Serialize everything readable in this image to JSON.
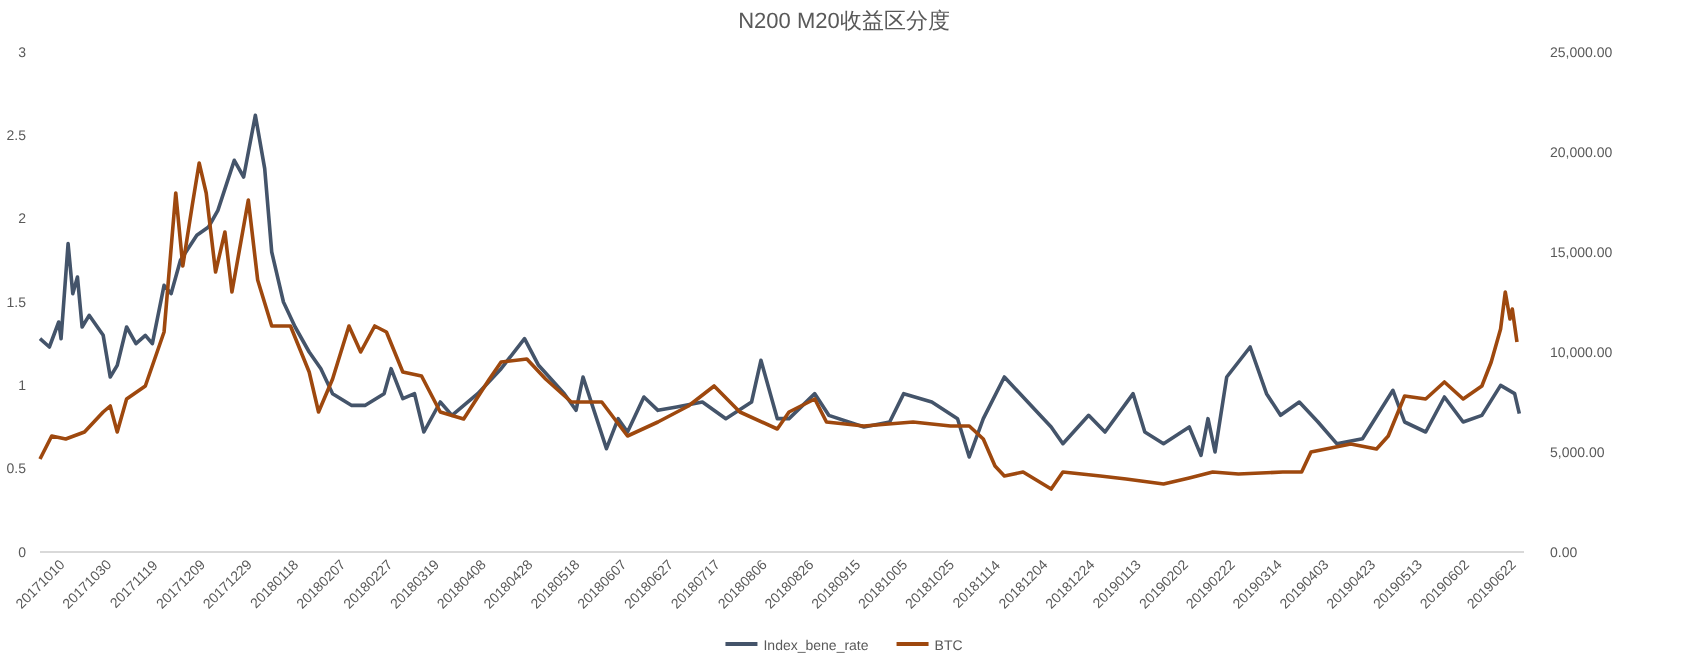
{
  "chart_data": {
    "type": "line",
    "title": "N200 M20收益区分度",
    "xlim": [
      "2017-10-10",
      "2019-07-06"
    ],
    "xticks": [
      {
        "value": "2017-10-10",
        "label": "20171010"
      },
      {
        "value": "2017-10-30",
        "label": "20171030"
      },
      {
        "value": "2017-11-19",
        "label": "20171119"
      },
      {
        "value": "2017-12-09",
        "label": "20171209"
      },
      {
        "value": "2017-12-29",
        "label": "20171229"
      },
      {
        "value": "2018-01-18",
        "label": "20180118"
      },
      {
        "value": "2018-02-07",
        "label": "20180207"
      },
      {
        "value": "2018-02-27",
        "label": "20180227"
      },
      {
        "value": "2018-03-19",
        "label": "20180319"
      },
      {
        "value": "2018-04-08",
        "label": "20180408"
      },
      {
        "value": "2018-04-28",
        "label": "20180428"
      },
      {
        "value": "2018-05-18",
        "label": "20180518"
      },
      {
        "value": "2018-06-07",
        "label": "20180607"
      },
      {
        "value": "2018-06-27",
        "label": "20180627"
      },
      {
        "value": "2018-07-17",
        "label": "20180717"
      },
      {
        "value": "2018-08-06",
        "label": "20180806"
      },
      {
        "value": "2018-08-26",
        "label": "20180826"
      },
      {
        "value": "2018-09-15",
        "label": "20180915"
      },
      {
        "value": "2018-10-05",
        "label": "20181005"
      },
      {
        "value": "2018-10-25",
        "label": "20181025"
      },
      {
        "value": "2018-11-14",
        "label": "20181114"
      },
      {
        "value": "2018-12-04",
        "label": "20181204"
      },
      {
        "value": "2018-12-24",
        "label": "20181224"
      },
      {
        "value": "2019-01-13",
        "label": "20190113"
      },
      {
        "value": "2019-02-02",
        "label": "20190202"
      },
      {
        "value": "2019-02-22",
        "label": "20190222"
      },
      {
        "value": "2019-03-14",
        "label": "20190314"
      },
      {
        "value": "2019-04-03",
        "label": "20190403"
      },
      {
        "value": "2019-04-23",
        "label": "20190423"
      },
      {
        "value": "2019-05-13",
        "label": "20190513"
      },
      {
        "value": "2019-06-02",
        "label": "20190602"
      },
      {
        "value": "2019-06-22",
        "label": "20190622"
      }
    ],
    "ylim": [
      0,
      3
    ],
    "yticks": [
      0,
      0.5,
      1,
      1.5,
      2,
      2.5,
      3
    ],
    "y2lim": [
      0,
      25000
    ],
    "y2ticks": [
      {
        "value": 0,
        "label": "0.00"
      },
      {
        "value": 5000,
        "label": "5,000.00"
      },
      {
        "value": 10000,
        "label": "10,000.00"
      },
      {
        "value": 15000,
        "label": "15,000.00"
      },
      {
        "value": 20000,
        "label": "20,000.00"
      },
      {
        "value": 25000,
        "label": "25,000.00"
      }
    ],
    "legend": "bottom",
    "grid": false,
    "marker": "none",
    "line_style": "solid",
    "series": [
      {
        "name": "Index_bene_rate",
        "color": "#44546a",
        "x": [
          "2017-10-10",
          "2017-10-14",
          "2017-10-18",
          "2017-10-19",
          "2017-10-22",
          "2017-10-24",
          "2017-10-26",
          "2017-10-28",
          "2017-10-31",
          "2017-11-06",
          "2017-11-09",
          "2017-11-12",
          "2017-11-16",
          "2017-11-20",
          "2017-11-24",
          "2017-11-27",
          "2017-12-02",
          "2017-12-05",
          "2017-12-09",
          "2017-12-16",
          "2017-12-21",
          "2017-12-25",
          "2018-01-01",
          "2018-01-05",
          "2018-01-10",
          "2018-01-14",
          "2018-01-17",
          "2018-01-22",
          "2018-01-27",
          "2018-02-02",
          "2018-02-07",
          "2018-02-12",
          "2018-02-20",
          "2018-02-26",
          "2018-03-06",
          "2018-03-09",
          "2018-03-14",
          "2018-03-19",
          "2018-03-23",
          "2018-03-30",
          "2018-04-04",
          "2018-04-15",
          "2018-04-25",
          "2018-05-05",
          "2018-05-11",
          "2018-05-22",
          "2018-05-27",
          "2018-05-30",
          "2018-06-09",
          "2018-06-14",
          "2018-06-18",
          "2018-06-25",
          "2018-07-01",
          "2018-07-09",
          "2018-07-20",
          "2018-07-30",
          "2018-08-10",
          "2018-08-14",
          "2018-08-21",
          "2018-08-26",
          "2018-09-06",
          "2018-09-12",
          "2018-09-27",
          "2018-10-08",
          "2018-10-14",
          "2018-10-26",
          "2018-11-06",
          "2018-11-11",
          "2018-11-17",
          "2018-11-26",
          "2018-12-06",
          "2018-12-16",
          "2018-12-21",
          "2019-01-01",
          "2019-01-08",
          "2019-01-20",
          "2019-01-25",
          "2019-02-02",
          "2019-02-13",
          "2019-02-18",
          "2019-02-21",
          "2019-02-24",
          "2019-03-01",
          "2019-03-11",
          "2019-03-18",
          "2019-03-24",
          "2019-04-01",
          "2019-04-09",
          "2019-04-17",
          "2019-04-28",
          "2019-05-11",
          "2019-05-16",
          "2019-05-25",
          "2019-06-02",
          "2019-06-10",
          "2019-06-18",
          "2019-06-26",
          "2019-07-02",
          "2019-07-04"
        ],
        "values": [
          1.28,
          1.23,
          1.38,
          1.28,
          1.85,
          1.55,
          1.65,
          1.35,
          1.42,
          1.3,
          1.05,
          1.12,
          1.35,
          1.25,
          1.3,
          1.25,
          1.6,
          1.55,
          1.75,
          1.9,
          1.95,
          2.05,
          2.35,
          2.25,
          2.62,
          2.3,
          1.8,
          1.5,
          1.35,
          1.2,
          1.1,
          0.95,
          0.88,
          0.88,
          0.95,
          1.1,
          0.92,
          0.95,
          0.72,
          0.9,
          0.82,
          0.95,
          1.1,
          1.28,
          1.12,
          0.95,
          0.85,
          1.05,
          0.62,
          0.8,
          0.72,
          0.93,
          0.85,
          0.87,
          0.9,
          0.8,
          0.9,
          1.15,
          0.8,
          0.8,
          0.95,
          0.82,
          0.75,
          0.78,
          0.95,
          0.9,
          0.8,
          0.57,
          0.8,
          1.05,
          0.9,
          0.75,
          0.65,
          0.82,
          0.72,
          0.95,
          0.72,
          0.65,
          0.75,
          0.58,
          0.8,
          0.6,
          1.05,
          1.23,
          0.95,
          0.82,
          0.9,
          0.78,
          0.65,
          0.68,
          0.97,
          0.78,
          0.72,
          0.93,
          0.78,
          0.82,
          1.0,
          0.95,
          0.83
        ]
      },
      {
        "name": "BTC",
        "color": "#9e480e",
        "axis": "y2",
        "x": [
          "2017-10-10",
          "2017-10-15",
          "2017-10-21",
          "2017-10-29",
          "2017-11-06",
          "2017-11-09",
          "2017-11-12",
          "2017-11-16",
          "2017-11-24",
          "2017-12-02",
          "2017-12-07",
          "2017-12-10",
          "2017-12-14",
          "2017-12-17",
          "2017-12-20",
          "2017-12-24",
          "2017-12-28",
          "2017-12-31",
          "2018-01-07",
          "2018-01-11",
          "2018-01-17",
          "2018-01-25",
          "2018-02-02",
          "2018-02-06",
          "2018-02-12",
          "2018-02-19",
          "2018-02-24",
          "2018-03-02",
          "2018-03-07",
          "2018-03-14",
          "2018-03-22",
          "2018-03-30",
          "2018-04-09",
          "2018-04-20",
          "2018-04-25",
          "2018-05-06",
          "2018-05-14",
          "2018-05-25",
          "2018-06-07",
          "2018-06-18",
          "2018-07-01",
          "2018-07-14",
          "2018-07-25",
          "2018-08-05",
          "2018-08-21",
          "2018-08-26",
          "2018-09-06",
          "2018-09-11",
          "2018-09-27",
          "2018-10-18",
          "2018-11-03",
          "2018-11-11",
          "2018-11-17",
          "2018-11-22",
          "2018-11-26",
          "2018-12-04",
          "2018-12-16",
          "2018-12-21",
          "2019-01-06",
          "2019-01-17",
          "2019-02-02",
          "2019-02-13",
          "2019-02-23",
          "2019-03-06",
          "2019-03-25",
          "2019-04-02",
          "2019-04-06",
          "2019-04-23",
          "2019-05-04",
          "2019-05-09",
          "2019-05-16",
          "2019-05-25",
          "2019-06-02",
          "2019-06-10",
          "2019-06-18",
          "2019-06-22",
          "2019-06-26",
          "2019-06-28",
          "2019-06-30",
          "2019-07-01",
          "2019-07-03"
        ],
        "values": [
          4650,
          5800,
          5650,
          6000,
          7000,
          7300,
          6000,
          7650,
          8300,
          11000,
          17950,
          14300,
          17300,
          19450,
          17950,
          14000,
          16000,
          13000,
          17600,
          13600,
          11300,
          11300,
          9000,
          7000,
          8650,
          11300,
          10000,
          11300,
          11000,
          9000,
          8800,
          7000,
          6650,
          8650,
          9500,
          9650,
          8650,
          7500,
          7500,
          5800,
          6500,
          7300,
          8300,
          7000,
          6150,
          7000,
          7650,
          6500,
          6300,
          6500,
          6300,
          6300,
          5650,
          4300,
          3800,
          4000,
          3150,
          4000,
          3800,
          3650,
          3400,
          3700,
          4000,
          3900,
          4000,
          4000,
          5000,
          5400,
          5150,
          5800,
          7800,
          7650,
          8500,
          7650,
          8300,
          9500,
          11150,
          13000,
          11650,
          12150,
          10500
        ]
      }
    ]
  }
}
